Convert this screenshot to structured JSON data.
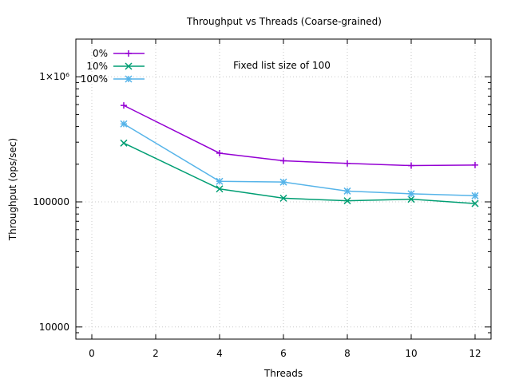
{
  "chart_data": {
    "type": "line",
    "title": "Throughput vs Threads (Coarse-grained)",
    "annotation": "Fixed list size of 100",
    "xlabel": "Threads",
    "ylabel": "Throughput (ops/sec)",
    "xlim": [
      -0.5,
      12.5
    ],
    "ylim": [
      8000,
      2000000
    ],
    "y_scale": "log",
    "grid": true,
    "legend_position": "top-left",
    "x_ticks": [
      0,
      2,
      4,
      6,
      8,
      10,
      12
    ],
    "x_tick_labels": [
      "0",
      "2",
      "4",
      "6",
      "8",
      "10",
      "12"
    ],
    "y_ticks": [
      10000,
      100000,
      1000000
    ],
    "y_tick_labels": [
      "10000",
      "100000",
      "1×10⁶"
    ],
    "x": [
      1,
      4,
      6,
      8,
      10,
      12
    ],
    "series": [
      {
        "name": "0%",
        "color": "#9400d3",
        "marker": "plus",
        "values": [
          590000,
          245000,
          213000,
          203000,
          195000,
          197000
        ]
      },
      {
        "name": "10%",
        "color": "#009e73",
        "marker": "cross",
        "values": [
          295000,
          127000,
          107000,
          102000,
          105000,
          97000
        ]
      },
      {
        "name": "100%",
        "color": "#56b4e9",
        "marker": "star",
        "values": [
          420000,
          146000,
          144000,
          122000,
          116000,
          112000
        ]
      }
    ]
  }
}
